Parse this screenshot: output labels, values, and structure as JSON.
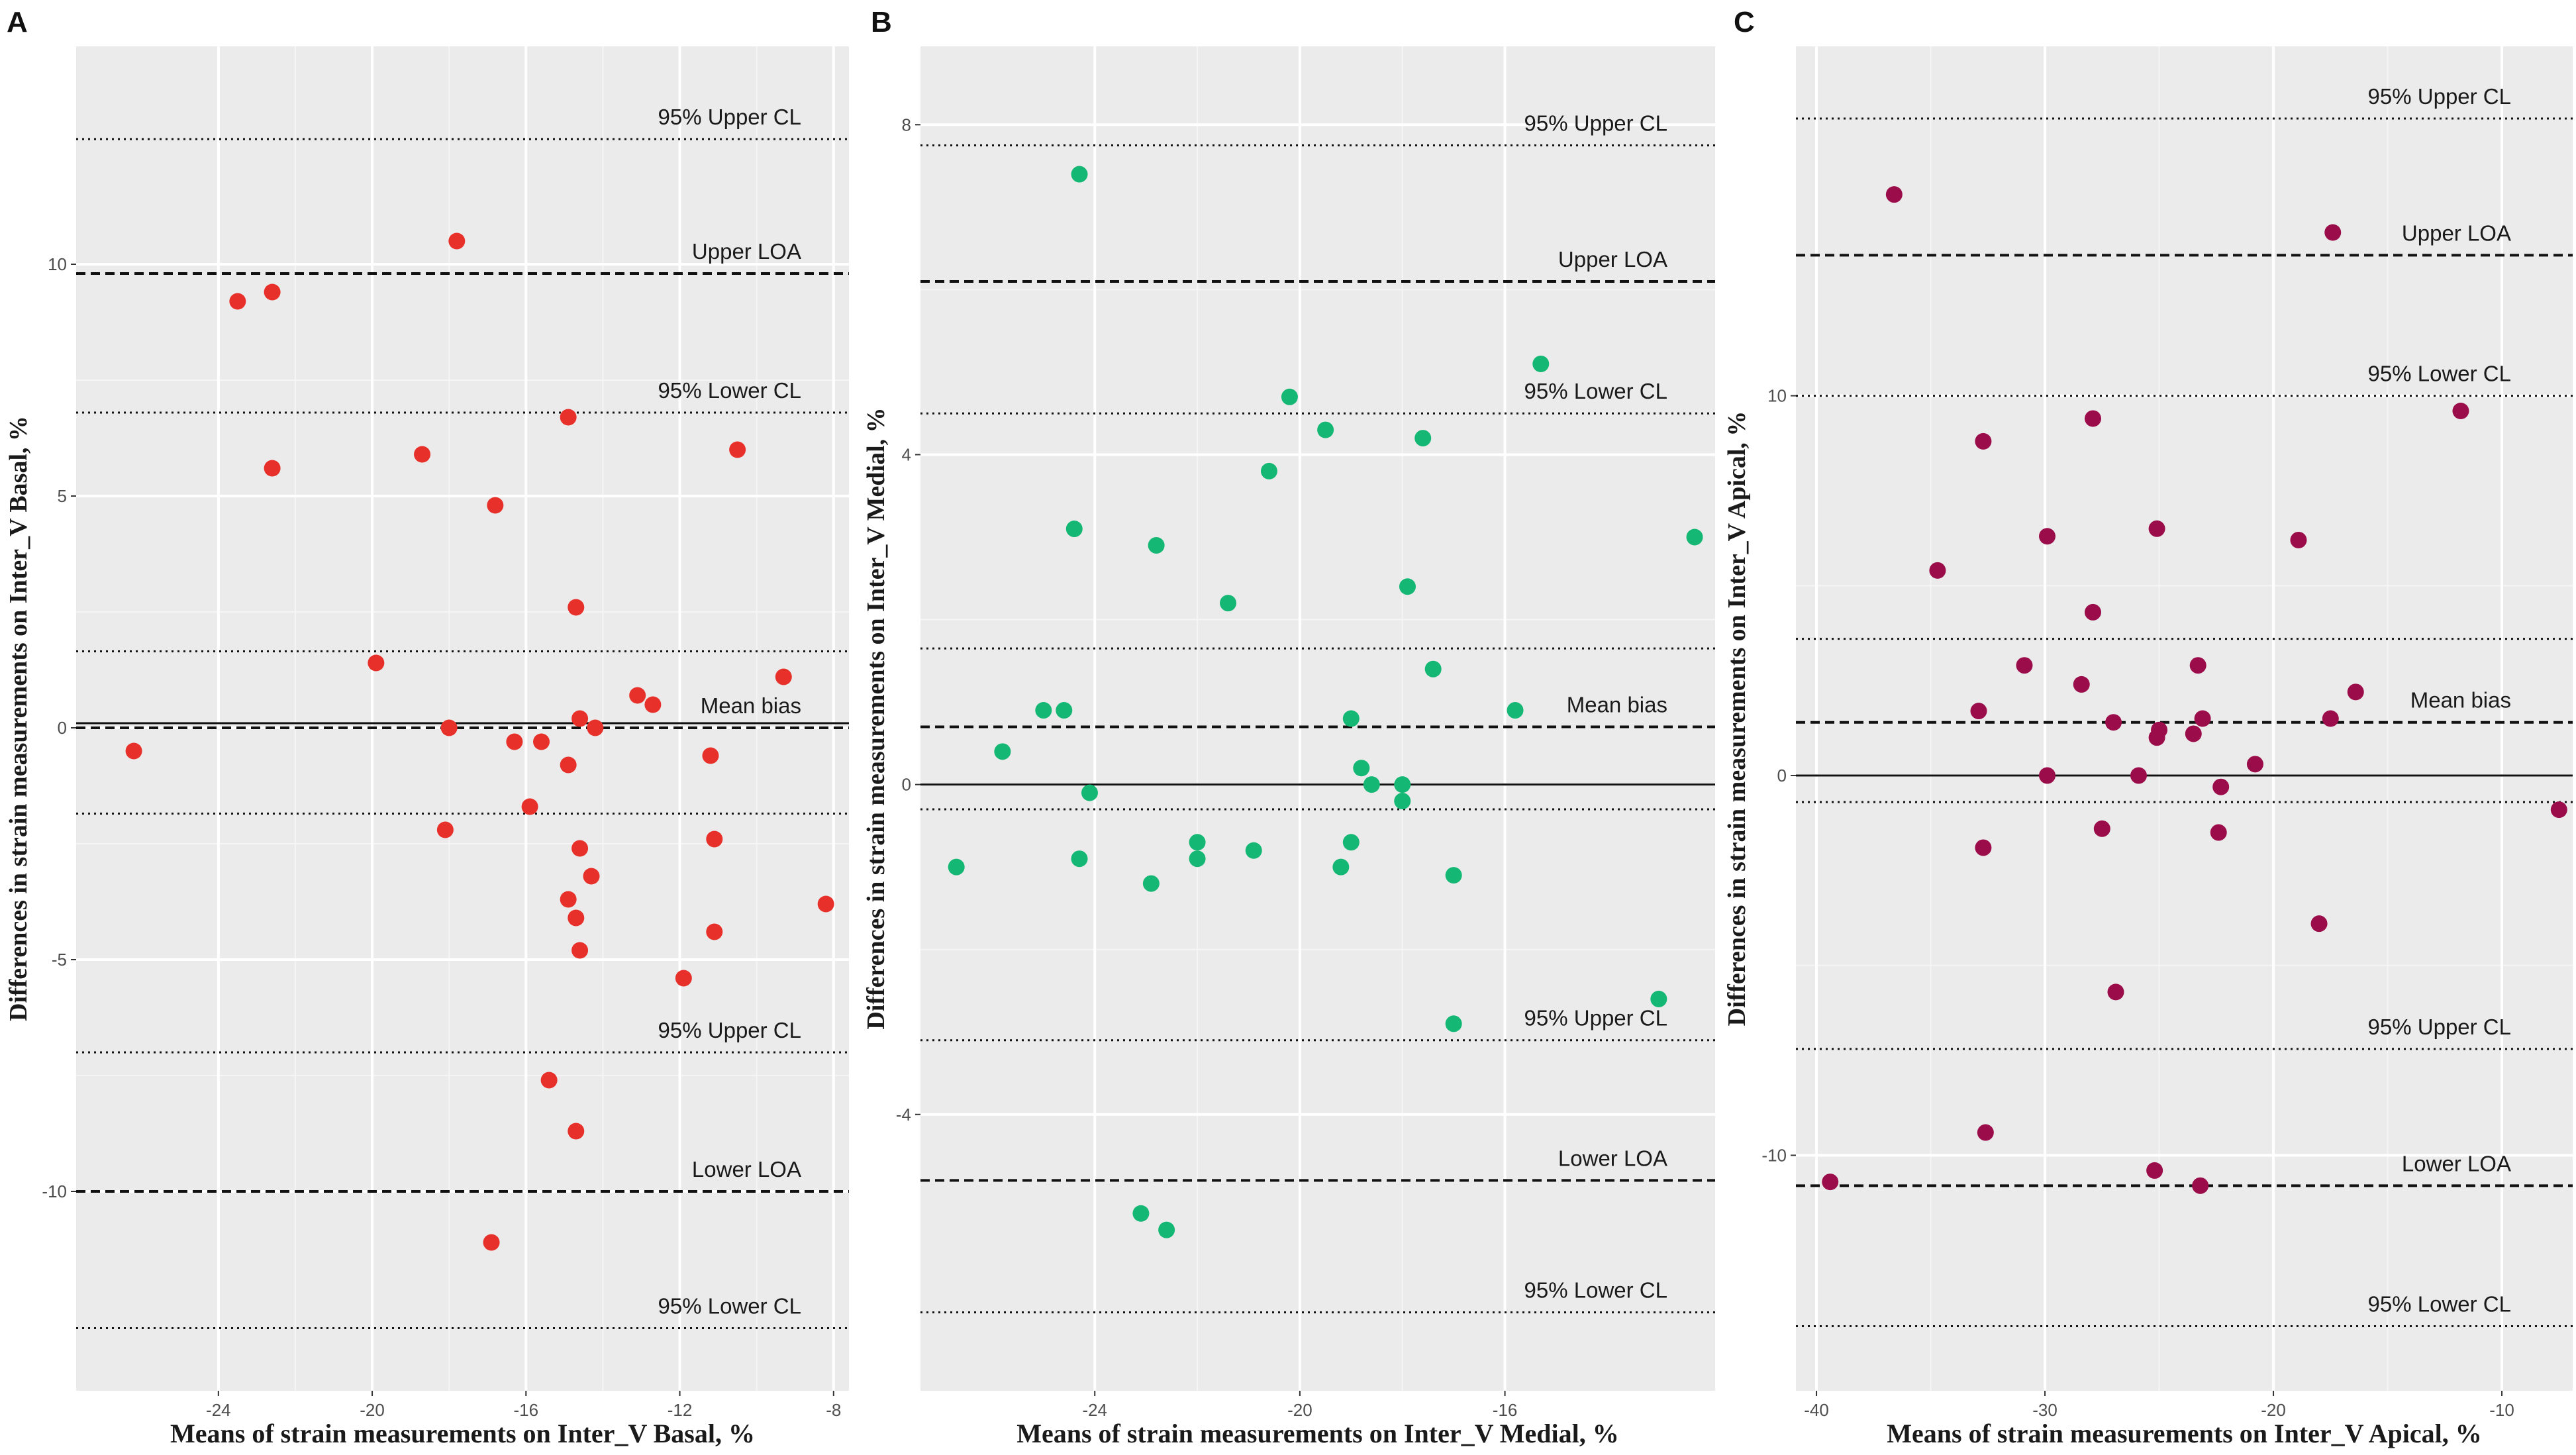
{
  "chart_data": [
    {
      "type": "scatter",
      "panel": "A",
      "color": "#e8302a",
      "xlabel": "Means of strain measurements on Inter_V Basal, %",
      "ylabel": "Differences in strain measurements on Inter_V Basal, %",
      "xlim": [
        -27.7,
        -7.6
      ],
      "ylim": [
        -14.3,
        14.7
      ],
      "xticks": [
        -24,
        -20,
        -16,
        -12,
        -8
      ],
      "yticks": [
        -10,
        -5,
        0,
        5,
        10
      ],
      "lines": [
        {
          "y": 12.7,
          "style": "dotted",
          "label": "95% Upper CL"
        },
        {
          "y": 9.8,
          "style": "dashed",
          "label": "Upper LOA"
        },
        {
          "y": 6.8,
          "style": "dotted",
          "label": "95% Lower CL"
        },
        {
          "y": 1.65,
          "style": "dotted",
          "label": ""
        },
        {
          "y": 0.1,
          "style": "solid",
          "label": ""
        },
        {
          "y": 0.0,
          "style": "dashed",
          "label": "Mean bias"
        },
        {
          "y": -1.85,
          "style": "dotted",
          "label": ""
        },
        {
          "y": -7.0,
          "style": "dotted",
          "label": "95% Upper CL"
        },
        {
          "y": -10.0,
          "style": "dashed",
          "label": "Lower LOA"
        },
        {
          "y": -12.95,
          "style": "dotted",
          "label": "95% Lower CL"
        }
      ],
      "points": [
        {
          "x": -26.2,
          "y": -0.5
        },
        {
          "x": -23.5,
          "y": 9.2
        },
        {
          "x": -22.6,
          "y": 9.4
        },
        {
          "x": -22.6,
          "y": 5.6
        },
        {
          "x": -17.8,
          "y": 10.5
        },
        {
          "x": -18.7,
          "y": 5.9
        },
        {
          "x": -16.8,
          "y": 4.8
        },
        {
          "x": -14.9,
          "y": 6.7
        },
        {
          "x": -10.5,
          "y": 6.0
        },
        {
          "x": -14.7,
          "y": 2.6
        },
        {
          "x": -19.9,
          "y": 1.4
        },
        {
          "x": -9.3,
          "y": 1.1
        },
        {
          "x": -13.1,
          "y": 0.7
        },
        {
          "x": -12.7,
          "y": 0.5
        },
        {
          "x": -14.6,
          "y": 0.2
        },
        {
          "x": -18.0,
          "y": 0.0
        },
        {
          "x": -14.2,
          "y": 0.0
        },
        {
          "x": -16.3,
          "y": -0.3
        },
        {
          "x": -15.6,
          "y": -0.3
        },
        {
          "x": -14.9,
          "y": -0.8
        },
        {
          "x": -11.2,
          "y": -0.6
        },
        {
          "x": -15.9,
          "y": -1.7
        },
        {
          "x": -18.1,
          "y": -2.2
        },
        {
          "x": -11.1,
          "y": -2.4
        },
        {
          "x": -14.6,
          "y": -2.6
        },
        {
          "x": -14.3,
          "y": -3.2
        },
        {
          "x": -14.9,
          "y": -3.7
        },
        {
          "x": -14.7,
          "y": -4.1
        },
        {
          "x": -11.1,
          "y": -4.4
        },
        {
          "x": -14.6,
          "y": -4.8
        },
        {
          "x": -8.2,
          "y": -3.8
        },
        {
          "x": -11.9,
          "y": -5.4
        },
        {
          "x": -15.4,
          "y": -7.6
        },
        {
          "x": -14.7,
          "y": -8.7
        },
        {
          "x": -16.9,
          "y": -11.1
        }
      ]
    },
    {
      "type": "scatter",
      "panel": "B",
      "color": "#14b874",
      "xlabel": "Means of strain measurements on Inter_V Medial, %",
      "ylabel": "Differences in strain measurements on Inter_V Medial, %",
      "xlim": [
        -27.4,
        -11.9
      ],
      "ylim": [
        -7.35,
        8.95
      ],
      "xticks": [
        -24,
        -20,
        -16
      ],
      "yticks": [
        -4,
        0,
        4,
        8
      ],
      "lines": [
        {
          "y": 7.75,
          "style": "dotted",
          "label": "95% Upper CL"
        },
        {
          "y": 6.1,
          "style": "dashed",
          "label": "Upper LOA"
        },
        {
          "y": 4.5,
          "style": "dotted",
          "label": "95% Lower CL"
        },
        {
          "y": 1.65,
          "style": "dotted",
          "label": ""
        },
        {
          "y": 0.7,
          "style": "dashed",
          "label": "Mean bias"
        },
        {
          "y": 0.0,
          "style": "solid",
          "label": ""
        },
        {
          "y": -0.3,
          "style": "dotted",
          "label": ""
        },
        {
          "y": -3.1,
          "style": "dotted",
          "label": "95% Upper CL"
        },
        {
          "y": -4.8,
          "style": "dashed",
          "label": "Lower LOA"
        },
        {
          "y": -6.4,
          "style": "dotted",
          "label": "95% Lower CL"
        }
      ],
      "points": [
        {
          "x": -24.3,
          "y": 7.4
        },
        {
          "x": -15.3,
          "y": 5.1
        },
        {
          "x": -20.2,
          "y": 4.7
        },
        {
          "x": -19.5,
          "y": 4.3
        },
        {
          "x": -17.6,
          "y": 4.2
        },
        {
          "x": -20.6,
          "y": 3.8
        },
        {
          "x": -24.4,
          "y": 3.1
        },
        {
          "x": -12.3,
          "y": 3.0
        },
        {
          "x": -22.8,
          "y": 2.9
        },
        {
          "x": -17.9,
          "y": 2.4
        },
        {
          "x": -21.4,
          "y": 2.2
        },
        {
          "x": -17.4,
          "y": 1.4
        },
        {
          "x": -25.0,
          "y": 0.9
        },
        {
          "x": -24.6,
          "y": 0.9
        },
        {
          "x": -15.8,
          "y": 0.9
        },
        {
          "x": -19.0,
          "y": 0.8
        },
        {
          "x": -25.8,
          "y": 0.4
        },
        {
          "x": -18.8,
          "y": 0.2
        },
        {
          "x": -18.6,
          "y": 0.0
        },
        {
          "x": -18.0,
          "y": 0.0
        },
        {
          "x": -24.1,
          "y": -0.1
        },
        {
          "x": -18.0,
          "y": -0.2
        },
        {
          "x": -22.0,
          "y": -0.7
        },
        {
          "x": -19.0,
          "y": -0.7
        },
        {
          "x": -20.9,
          "y": -0.8
        },
        {
          "x": -24.3,
          "y": -0.9
        },
        {
          "x": -22.0,
          "y": -0.9
        },
        {
          "x": -26.7,
          "y": -1.0
        },
        {
          "x": -19.2,
          "y": -1.0
        },
        {
          "x": -17.0,
          "y": -1.1
        },
        {
          "x": -22.9,
          "y": -1.2
        },
        {
          "x": -13.0,
          "y": -2.6
        },
        {
          "x": -17.0,
          "y": -2.9
        },
        {
          "x": -23.1,
          "y": -5.2
        },
        {
          "x": -22.6,
          "y": -5.4
        }
      ]
    },
    {
      "type": "scatter",
      "panel": "C",
      "color": "#9b0d4a",
      "xlabel": "Means of strain measurements on Inter_V Apical, %",
      "ylabel": "Differences in strain measurements on Inter_V Apical, %",
      "xlim": [
        -40.9,
        -6.9
      ],
      "ylim": [
        -16.2,
        19.2
      ],
      "xticks": [
        -40,
        -30,
        -20,
        -10
      ],
      "yticks": [
        -10,
        0,
        10
      ],
      "lines": [
        {
          "y": 17.3,
          "style": "dotted",
          "label": "95% Upper CL"
        },
        {
          "y": 13.7,
          "style": "dashed",
          "label": "Upper LOA"
        },
        {
          "y": 10.0,
          "style": "dotted",
          "label": "95% Lower CL"
        },
        {
          "y": 3.6,
          "style": "dotted",
          "label": ""
        },
        {
          "y": 1.4,
          "style": "dashed",
          "label": "Mean bias"
        },
        {
          "y": 0.0,
          "style": "solid",
          "label": ""
        },
        {
          "y": -0.7,
          "style": "dotted",
          "label": ""
        },
        {
          "y": -7.2,
          "style": "dotted",
          "label": "95% Upper CL"
        },
        {
          "y": -10.8,
          "style": "dashed",
          "label": "Lower LOA"
        },
        {
          "y": -14.5,
          "style": "dotted",
          "label": "95% Lower CL"
        }
      ],
      "points": [
        {
          "x": -36.6,
          "y": 15.3
        },
        {
          "x": -17.4,
          "y": 14.3
        },
        {
          "x": -11.8,
          "y": 9.6
        },
        {
          "x": -32.7,
          "y": 8.8
        },
        {
          "x": -27.9,
          "y": 9.4
        },
        {
          "x": -29.9,
          "y": 6.3
        },
        {
          "x": -25.1,
          "y": 6.5
        },
        {
          "x": -18.9,
          "y": 6.2
        },
        {
          "x": -34.7,
          "y": 5.4
        },
        {
          "x": -27.9,
          "y": 4.3
        },
        {
          "x": -30.9,
          "y": 2.9
        },
        {
          "x": -23.3,
          "y": 2.9
        },
        {
          "x": -28.4,
          "y": 2.4
        },
        {
          "x": -16.4,
          "y": 2.2
        },
        {
          "x": -32.9,
          "y": 1.7
        },
        {
          "x": -27.0,
          "y": 1.4
        },
        {
          "x": -23.1,
          "y": 1.5
        },
        {
          "x": -17.5,
          "y": 1.5
        },
        {
          "x": -25.0,
          "y": 1.2
        },
        {
          "x": -23.5,
          "y": 1.1
        },
        {
          "x": -25.1,
          "y": 1.0
        },
        {
          "x": -20.8,
          "y": 0.3
        },
        {
          "x": -29.9,
          "y": 0.0
        },
        {
          "x": -25.9,
          "y": 0.0
        },
        {
          "x": -22.3,
          "y": -0.3
        },
        {
          "x": -7.5,
          "y": -0.9
        },
        {
          "x": -27.5,
          "y": -1.4
        },
        {
          "x": -22.4,
          "y": -1.5
        },
        {
          "x": -32.7,
          "y": -1.9
        },
        {
          "x": -18.0,
          "y": -3.9
        },
        {
          "x": -26.9,
          "y": -5.7
        },
        {
          "x": -32.6,
          "y": -9.4
        },
        {
          "x": -39.4,
          "y": -10.7
        },
        {
          "x": -25.2,
          "y": -10.4
        },
        {
          "x": -23.2,
          "y": -10.8
        }
      ]
    }
  ]
}
